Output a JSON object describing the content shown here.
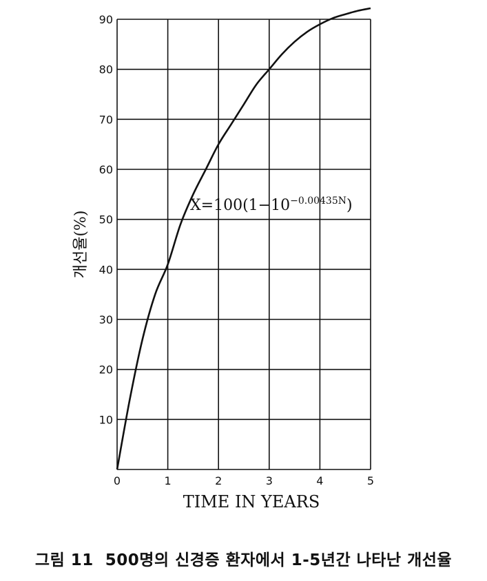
{
  "chart_data": {
    "type": "line",
    "xlabel": "TIME IN YEARS",
    "ylabel": "개선율(%)",
    "xlim": [
      0,
      5
    ],
    "ylim": [
      0,
      90
    ],
    "x_ticks": [
      "0",
      "1",
      "2",
      "3",
      "4",
      "5"
    ],
    "y_ticks": [
      "10",
      "20",
      "30",
      "40",
      "50",
      "60",
      "70",
      "80",
      "90"
    ],
    "grid": true,
    "annotation": {
      "base": "X=100(1−10",
      "exponent": "−0.00435N",
      "close": ")"
    },
    "series": [
      {
        "x": [
          0,
          0.25,
          0.5,
          0.75,
          1.0,
          1.25,
          1.5,
          1.75,
          2.0,
          2.25,
          2.5,
          2.75,
          3.0,
          3.25,
          3.5,
          3.75,
          4.0,
          4.25,
          4.5,
          4.75,
          5.0
        ],
        "y": [
          0,
          14,
          26,
          35,
          41,
          49,
          55,
          60,
          65,
          69,
          73,
          77,
          80,
          83,
          85.5,
          87.5,
          89,
          90.2,
          91,
          91.7,
          92.2
        ]
      }
    ],
    "color": "#111111"
  },
  "caption": "그림 11  500명의 신경증 환자에서 1-5년간 나타난 개선율"
}
